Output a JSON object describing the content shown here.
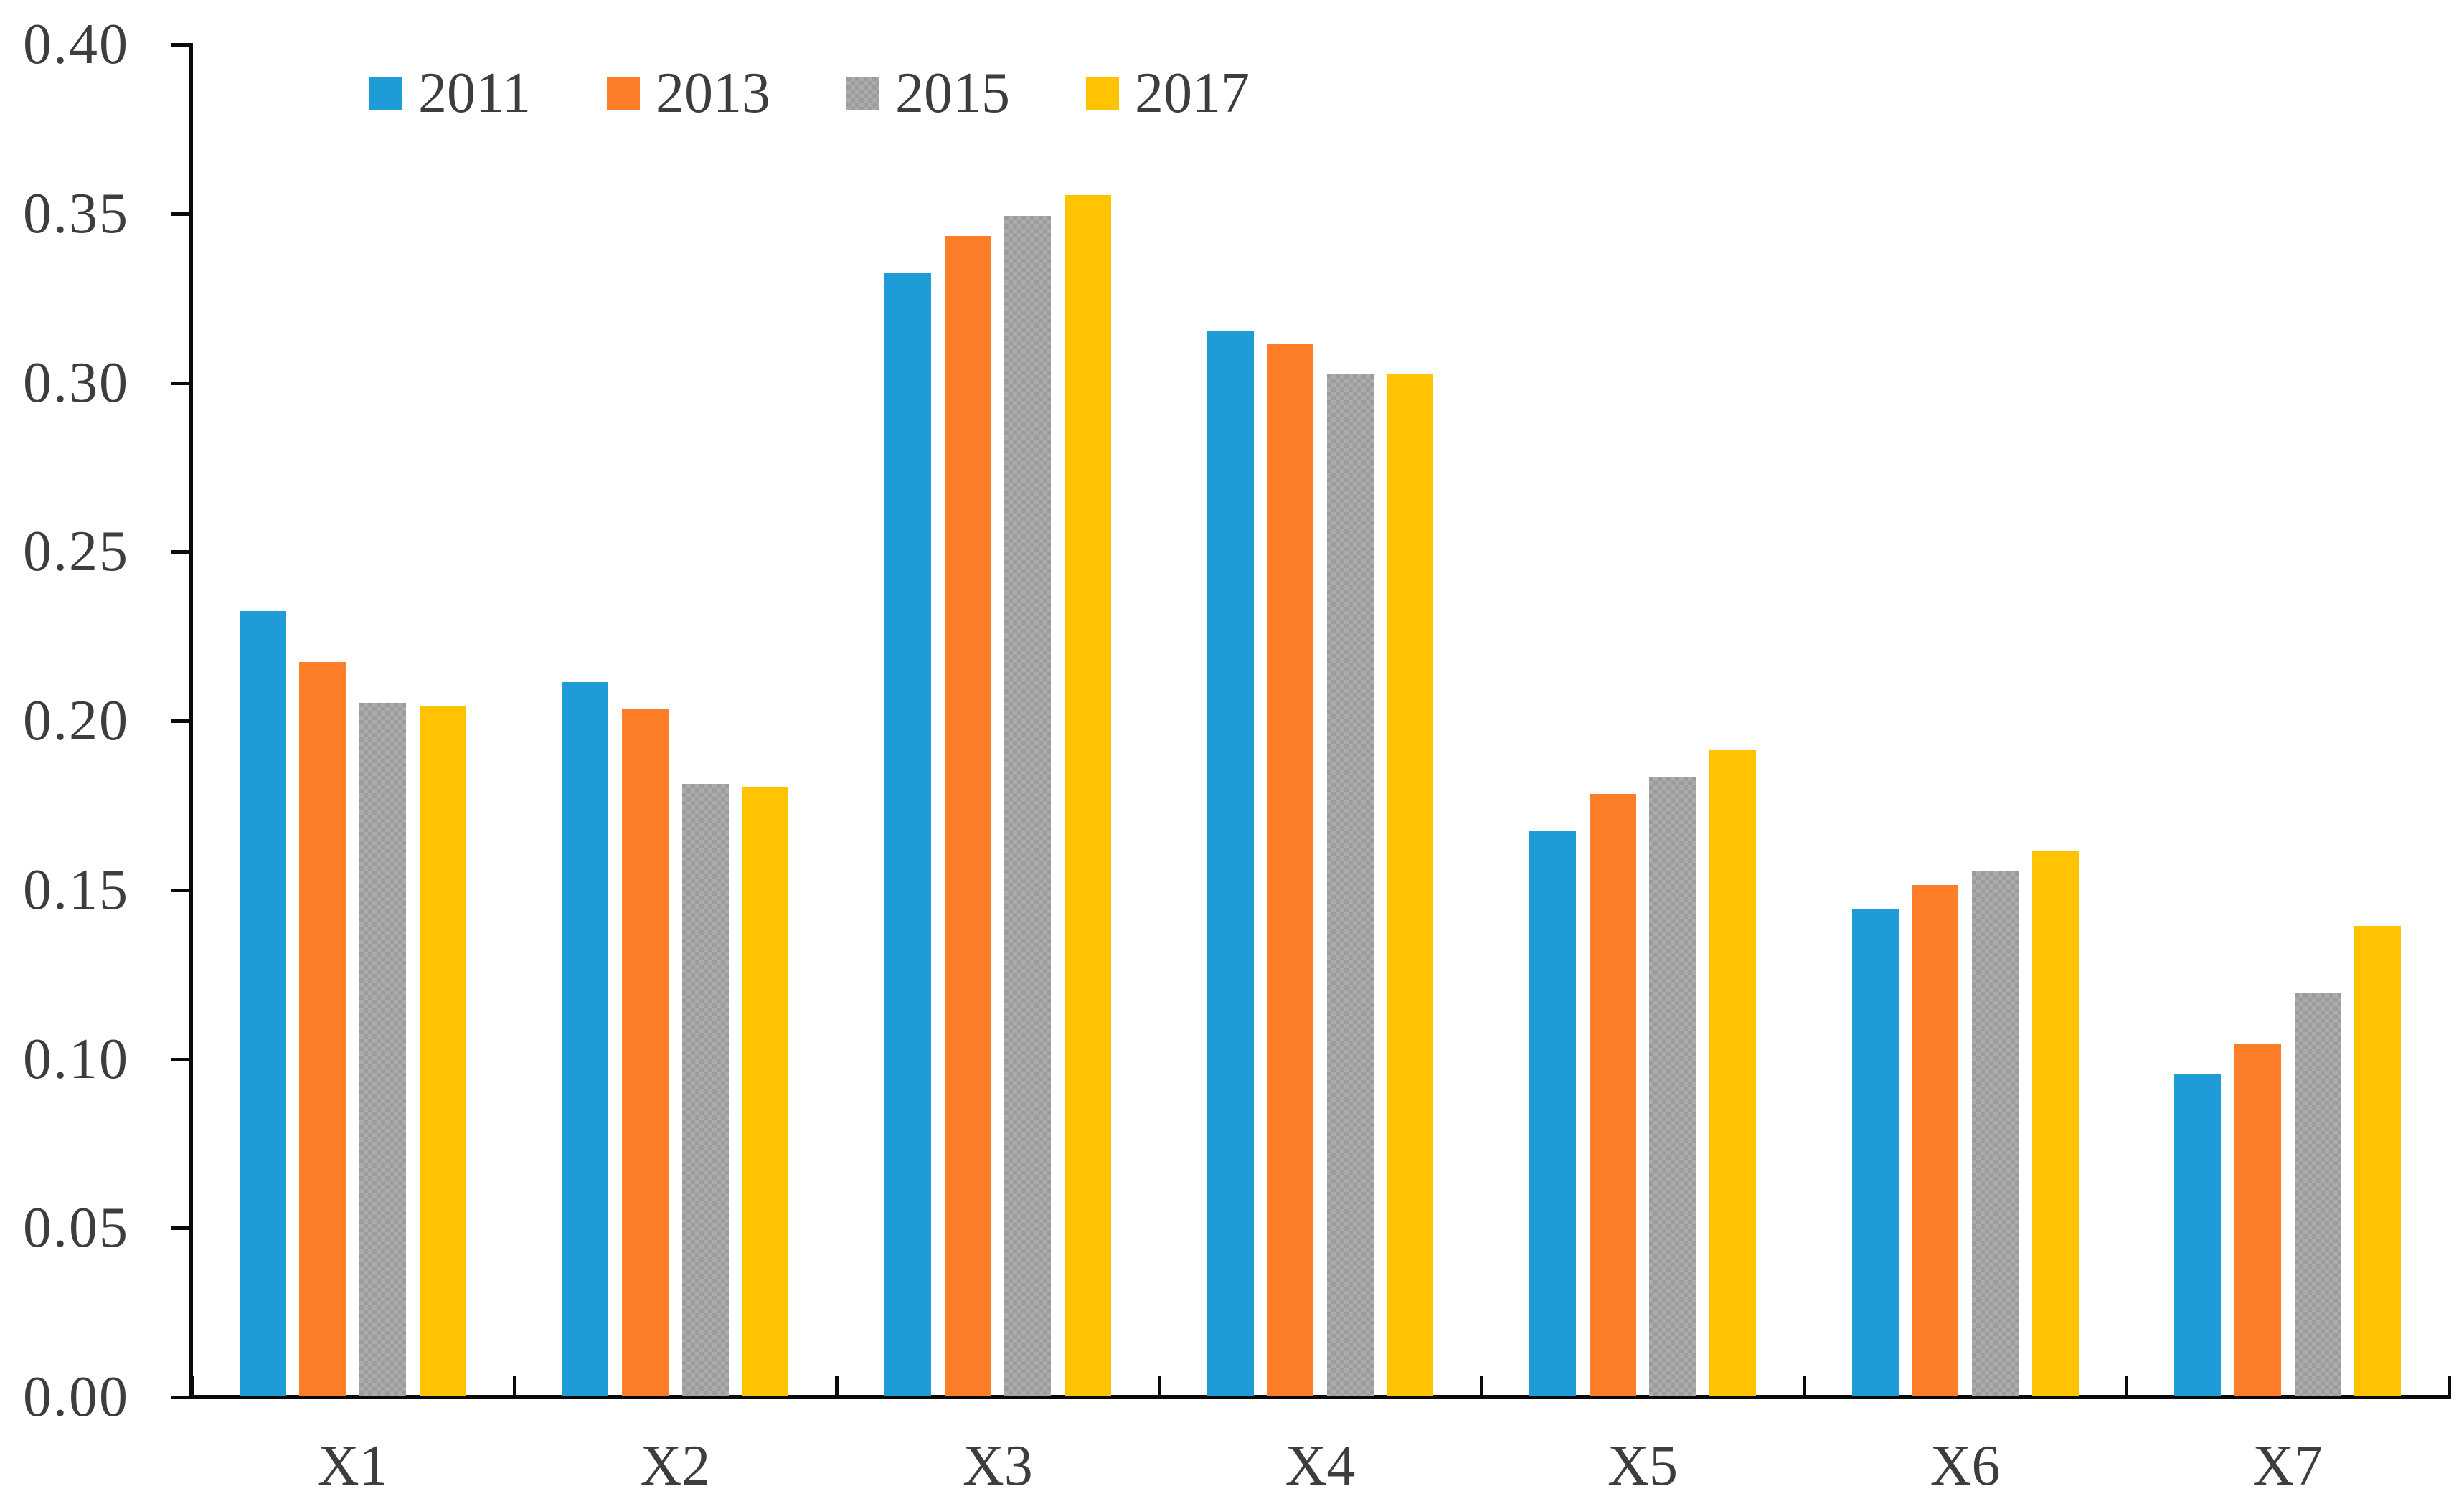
{
  "chart_data": {
    "type": "bar",
    "title": "",
    "xlabel": "",
    "ylabel": "",
    "categories": [
      "X1",
      "X2",
      "X3",
      "X4",
      "X5",
      "X6",
      "X7"
    ],
    "series": [
      {
        "name": "2011",
        "color": "#1f9cd8",
        "pattern": "solid",
        "values": [
          0.232,
          0.211,
          0.332,
          0.315,
          0.167,
          0.144,
          0.095
        ]
      },
      {
        "name": "2013",
        "color": "#fd7d28",
        "pattern": "solid",
        "values": [
          0.217,
          0.203,
          0.343,
          0.311,
          0.178,
          0.151,
          0.104
        ]
      },
      {
        "name": "2015",
        "color": "#a4a4a4",
        "pattern": "checker",
        "pattern_colors": [
          "#ababab",
          "#9c9c9c"
        ],
        "values": [
          0.205,
          0.181,
          0.349,
          0.302,
          0.183,
          0.155,
          0.119
        ]
      },
      {
        "name": "2017",
        "color": "#ffc301",
        "pattern": "solid",
        "values": [
          0.204,
          0.18,
          0.355,
          0.302,
          0.191,
          0.161,
          0.139
        ]
      }
    ],
    "ylim": [
      0,
      0.4
    ],
    "ytick_step": 0.05,
    "ytick_labels": [
      "0.00",
      "0.05",
      "0.10",
      "0.15",
      "0.20",
      "0.25",
      "0.30",
      "0.35",
      "0.40"
    ],
    "grid": false,
    "legend_position": "top-left-inside",
    "axis_color": "#0a0a0a",
    "label_color": "#3d3d3d"
  }
}
